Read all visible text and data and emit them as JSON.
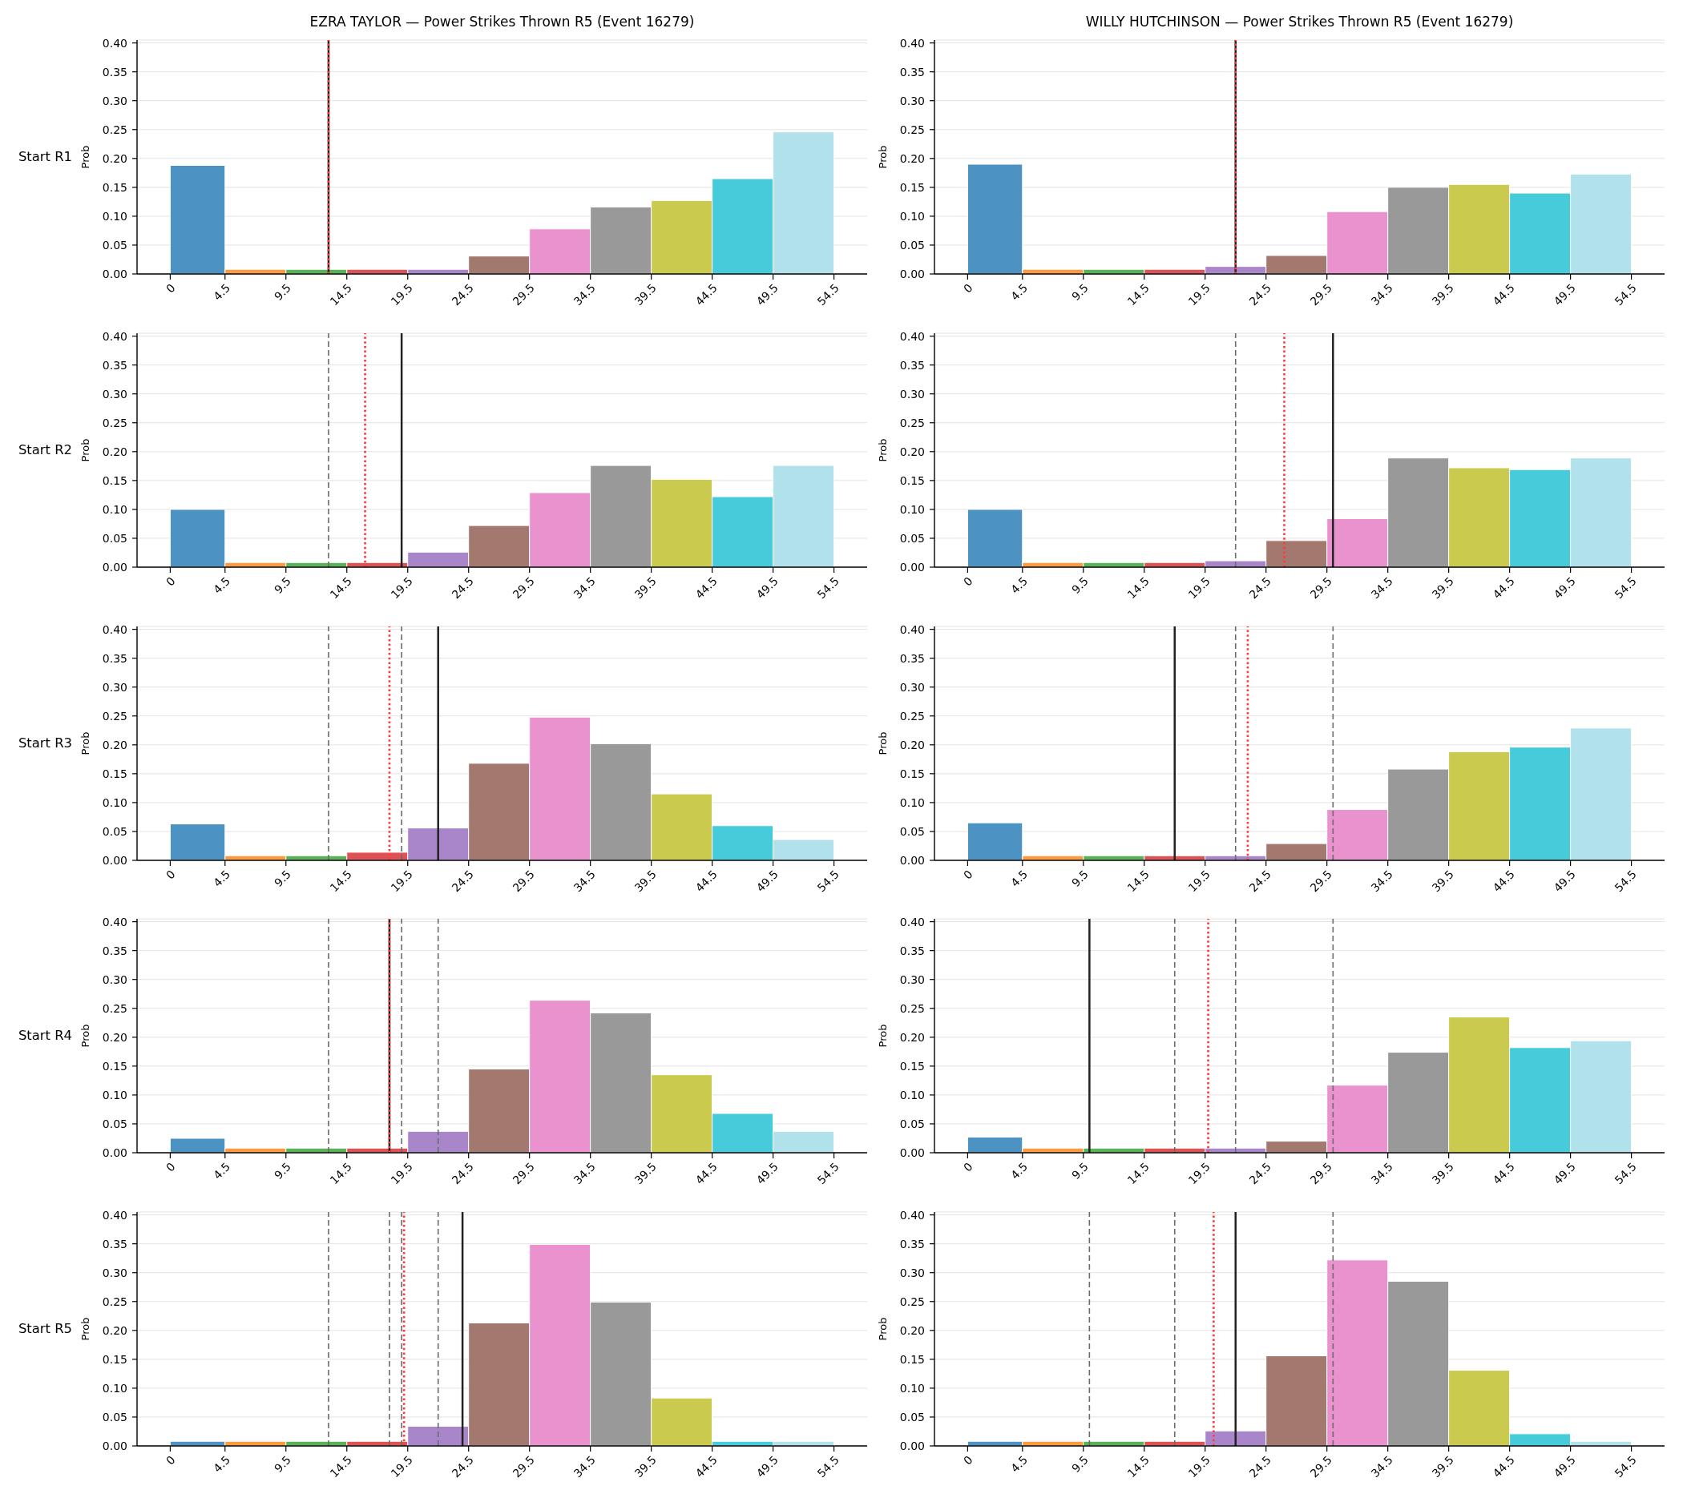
{
  "chart_data": [
    {
      "type": "histogram",
      "title": "EZRA TAYLOR — Power Strikes Thrown R5 (Event 16279)",
      "ylabel": "Prob",
      "annotations": [
        "Start R1"
      ],
      "bins": [
        0,
        4.5,
        9.5,
        14.5,
        19.5,
        24.5,
        29.5,
        34.5,
        39.5,
        44.5,
        49.5,
        54.5
      ],
      "values": [
        0.188,
        0.008,
        0.008,
        0.008,
        0.008,
        0.031,
        0.078,
        0.116,
        0.127,
        0.165,
        0.246
      ],
      "colors": [
        "#4c92c3",
        "#ff993e",
        "#56b356",
        "#de5253",
        "#a985ca",
        "#a3786f",
        "#e992ce",
        "#999999",
        "#c9ca4e",
        "#45cbd9",
        "#b1e1ea"
      ],
      "xlim": [
        -2.725,
        57.225
      ],
      "xticks": [
        0,
        4.5,
        9.5,
        14.5,
        19.5,
        24.5,
        29.5,
        34.5,
        39.5,
        44.5,
        49.5,
        54.5
      ],
      "ylim": [
        0,
        0.405
      ],
      "yticks": [
        {
          "value": 0,
          "label": "0.00"
        },
        {
          "value": 0.05,
          "label": "0.05"
        },
        {
          "value": 0.1,
          "label": "0.10"
        },
        {
          "value": 0.15,
          "label": "0.15"
        },
        {
          "value": 0.2,
          "label": "0.20"
        },
        {
          "value": 0.25,
          "label": "0.25"
        },
        {
          "value": 0.3,
          "label": "0.30"
        },
        {
          "value": 0.35,
          "label": "0.35"
        },
        {
          "value": 0.4,
          "label": "0.40"
        }
      ],
      "grid": "y",
      "ref_lines": [
        {
          "axis": "x",
          "value": 13,
          "color": "#222222",
          "line_style": "solid"
        },
        {
          "axis": "x",
          "value": 13,
          "color": "#ff3c3c",
          "line_style": "dotted"
        }
      ]
    },
    {
      "type": "histogram",
      "title": "WILLY HUTCHINSON — Power Strikes Thrown R5 (Event 16279)",
      "ylabel": "Prob",
      "bins": [
        0,
        4.5,
        9.5,
        14.5,
        19.5,
        24.5,
        29.5,
        34.5,
        39.5,
        44.5,
        49.5,
        54.5
      ],
      "values": [
        0.19,
        0.008,
        0.008,
        0.008,
        0.013,
        0.032,
        0.108,
        0.15,
        0.155,
        0.14,
        0.173
      ],
      "colors": [
        "#4c92c3",
        "#ff993e",
        "#56b356",
        "#de5253",
        "#a985ca",
        "#a3786f",
        "#e992ce",
        "#999999",
        "#c9ca4e",
        "#45cbd9",
        "#b1e1ea"
      ],
      "xlim": [
        -2.725,
        57.225
      ],
      "xticks": [
        0,
        4.5,
        9.5,
        14.5,
        19.5,
        24.5,
        29.5,
        34.5,
        39.5,
        44.5,
        49.5,
        54.5
      ],
      "ylim": [
        0,
        0.405
      ],
      "yticks": [
        {
          "value": 0,
          "label": "0.00"
        },
        {
          "value": 0.05,
          "label": "0.05"
        },
        {
          "value": 0.1,
          "label": "0.10"
        },
        {
          "value": 0.15,
          "label": "0.15"
        },
        {
          "value": 0.2,
          "label": "0.20"
        },
        {
          "value": 0.25,
          "label": "0.25"
        },
        {
          "value": 0.3,
          "label": "0.30"
        },
        {
          "value": 0.35,
          "label": "0.35"
        },
        {
          "value": 0.4,
          "label": "0.40"
        }
      ],
      "grid": "y",
      "ref_lines": [
        {
          "axis": "x",
          "value": 22,
          "color": "#222222",
          "line_style": "solid"
        },
        {
          "axis": "x",
          "value": 22,
          "color": "#ff3c3c",
          "line_style": "dotted"
        }
      ]
    },
    {
      "type": "histogram",
      "ylabel": "Prob",
      "annotations": [
        "Start R2"
      ],
      "bins": [
        0,
        4.5,
        9.5,
        14.5,
        19.5,
        24.5,
        29.5,
        34.5,
        39.5,
        44.5,
        49.5,
        54.5
      ],
      "values": [
        0.1,
        0.008,
        0.008,
        0.008,
        0.026,
        0.072,
        0.129,
        0.176,
        0.152,
        0.122,
        0.176
      ],
      "colors": [
        "#4c92c3",
        "#ff993e",
        "#56b356",
        "#de5253",
        "#a985ca",
        "#a3786f",
        "#e992ce",
        "#999999",
        "#c9ca4e",
        "#45cbd9",
        "#b1e1ea"
      ],
      "xlim": [
        -2.725,
        57.225
      ],
      "xticks": [
        0,
        4.5,
        9.5,
        14.5,
        19.5,
        24.5,
        29.5,
        34.5,
        39.5,
        44.5,
        49.5,
        54.5
      ],
      "ylim": [
        0,
        0.405
      ],
      "yticks": [
        {
          "value": 0,
          "label": "0.00"
        },
        {
          "value": 0.05,
          "label": "0.05"
        },
        {
          "value": 0.1,
          "label": "0.10"
        },
        {
          "value": 0.15,
          "label": "0.15"
        },
        {
          "value": 0.2,
          "label": "0.20"
        },
        {
          "value": 0.25,
          "label": "0.25"
        },
        {
          "value": 0.3,
          "label": "0.30"
        },
        {
          "value": 0.35,
          "label": "0.35"
        },
        {
          "value": 0.4,
          "label": "0.40"
        }
      ],
      "grid": "y",
      "ref_lines": [
        {
          "axis": "x",
          "value": 13,
          "color": "#6b6b6b",
          "line_style": "dashed"
        },
        {
          "axis": "x",
          "value": 19,
          "color": "#222222",
          "line_style": "solid"
        },
        {
          "axis": "x",
          "value": 16,
          "color": "#ff3c3c",
          "line_style": "dotted"
        }
      ]
    },
    {
      "type": "histogram",
      "ylabel": "Prob",
      "bins": [
        0,
        4.5,
        9.5,
        14.5,
        19.5,
        24.5,
        29.5,
        34.5,
        39.5,
        44.5,
        49.5,
        54.5
      ],
      "values": [
        0.1,
        0.008,
        0.008,
        0.008,
        0.011,
        0.046,
        0.084,
        0.189,
        0.172,
        0.169,
        0.189
      ],
      "colors": [
        "#4c92c3",
        "#ff993e",
        "#56b356",
        "#de5253",
        "#a985ca",
        "#a3786f",
        "#e992ce",
        "#999999",
        "#c9ca4e",
        "#45cbd9",
        "#b1e1ea"
      ],
      "xlim": [
        -2.725,
        57.225
      ],
      "xticks": [
        0,
        4.5,
        9.5,
        14.5,
        19.5,
        24.5,
        29.5,
        34.5,
        39.5,
        44.5,
        49.5,
        54.5
      ],
      "ylim": [
        0,
        0.405
      ],
      "yticks": [
        {
          "value": 0,
          "label": "0.00"
        },
        {
          "value": 0.05,
          "label": "0.05"
        },
        {
          "value": 0.1,
          "label": "0.10"
        },
        {
          "value": 0.15,
          "label": "0.15"
        },
        {
          "value": 0.2,
          "label": "0.20"
        },
        {
          "value": 0.25,
          "label": "0.25"
        },
        {
          "value": 0.3,
          "label": "0.30"
        },
        {
          "value": 0.35,
          "label": "0.35"
        },
        {
          "value": 0.4,
          "label": "0.40"
        }
      ],
      "grid": "y",
      "ref_lines": [
        {
          "axis": "x",
          "value": 22,
          "color": "#6b6b6b",
          "line_style": "dashed"
        },
        {
          "axis": "x",
          "value": 30,
          "color": "#222222",
          "line_style": "solid"
        },
        {
          "axis": "x",
          "value": 26,
          "color": "#ff3c3c",
          "line_style": "dotted"
        }
      ]
    },
    {
      "type": "histogram",
      "ylabel": "Prob",
      "annotations": [
        "Start R3"
      ],
      "bins": [
        0,
        4.5,
        9.5,
        14.5,
        19.5,
        24.5,
        29.5,
        34.5,
        39.5,
        44.5,
        49.5,
        54.5
      ],
      "values": [
        0.063,
        0.008,
        0.008,
        0.014,
        0.056,
        0.168,
        0.248,
        0.202,
        0.115,
        0.06,
        0.036
      ],
      "colors": [
        "#4c92c3",
        "#ff993e",
        "#56b356",
        "#de5253",
        "#a985ca",
        "#a3786f",
        "#e992ce",
        "#999999",
        "#c9ca4e",
        "#45cbd9",
        "#b1e1ea"
      ],
      "xlim": [
        -2.725,
        57.225
      ],
      "xticks": [
        0,
        4.5,
        9.5,
        14.5,
        19.5,
        24.5,
        29.5,
        34.5,
        39.5,
        44.5,
        49.5,
        54.5
      ],
      "ylim": [
        0,
        0.405
      ],
      "yticks": [
        {
          "value": 0,
          "label": "0.00"
        },
        {
          "value": 0.05,
          "label": "0.05"
        },
        {
          "value": 0.1,
          "label": "0.10"
        },
        {
          "value": 0.15,
          "label": "0.15"
        },
        {
          "value": 0.2,
          "label": "0.20"
        },
        {
          "value": 0.25,
          "label": "0.25"
        },
        {
          "value": 0.3,
          "label": "0.30"
        },
        {
          "value": 0.35,
          "label": "0.35"
        },
        {
          "value": 0.4,
          "label": "0.40"
        }
      ],
      "grid": "y",
      "ref_lines": [
        {
          "axis": "x",
          "value": 13,
          "color": "#6b6b6b",
          "line_style": "dashed"
        },
        {
          "axis": "x",
          "value": 19,
          "color": "#6b6b6b",
          "line_style": "dashed"
        },
        {
          "axis": "x",
          "value": 22,
          "color": "#222222",
          "line_style": "solid"
        },
        {
          "axis": "x",
          "value": 18,
          "color": "#ff3c3c",
          "line_style": "dotted"
        }
      ]
    },
    {
      "type": "histogram",
      "ylabel": "Prob",
      "bins": [
        0,
        4.5,
        9.5,
        14.5,
        19.5,
        24.5,
        29.5,
        34.5,
        39.5,
        44.5,
        49.5,
        54.5
      ],
      "values": [
        0.065,
        0.008,
        0.008,
        0.008,
        0.008,
        0.029,
        0.088,
        0.158,
        0.188,
        0.196,
        0.229
      ],
      "colors": [
        "#4c92c3",
        "#ff993e",
        "#56b356",
        "#de5253",
        "#a985ca",
        "#a3786f",
        "#e992ce",
        "#999999",
        "#c9ca4e",
        "#45cbd9",
        "#b1e1ea"
      ],
      "xlim": [
        -2.725,
        57.225
      ],
      "xticks": [
        0,
        4.5,
        9.5,
        14.5,
        19.5,
        24.5,
        29.5,
        34.5,
        39.5,
        44.5,
        49.5,
        54.5
      ],
      "ylim": [
        0,
        0.405
      ],
      "yticks": [
        {
          "value": 0,
          "label": "0.00"
        },
        {
          "value": 0.05,
          "label": "0.05"
        },
        {
          "value": 0.1,
          "label": "0.10"
        },
        {
          "value": 0.15,
          "label": "0.15"
        },
        {
          "value": 0.2,
          "label": "0.20"
        },
        {
          "value": 0.25,
          "label": "0.25"
        },
        {
          "value": 0.3,
          "label": "0.30"
        },
        {
          "value": 0.35,
          "label": "0.35"
        },
        {
          "value": 0.4,
          "label": "0.40"
        }
      ],
      "grid": "y",
      "ref_lines": [
        {
          "axis": "x",
          "value": 22,
          "color": "#6b6b6b",
          "line_style": "dashed"
        },
        {
          "axis": "x",
          "value": 30,
          "color": "#6b6b6b",
          "line_style": "dashed"
        },
        {
          "axis": "x",
          "value": 17,
          "color": "#222222",
          "line_style": "solid"
        },
        {
          "axis": "x",
          "value": 23,
          "color": "#ff3c3c",
          "line_style": "dotted"
        }
      ]
    },
    {
      "type": "histogram",
      "ylabel": "Prob",
      "annotations": [
        "Start R4"
      ],
      "bins": [
        0,
        4.5,
        9.5,
        14.5,
        19.5,
        24.5,
        29.5,
        34.5,
        39.5,
        44.5,
        49.5,
        54.5
      ],
      "values": [
        0.025,
        0.008,
        0.008,
        0.008,
        0.037,
        0.145,
        0.264,
        0.242,
        0.135,
        0.068,
        0.037
      ],
      "colors": [
        "#4c92c3",
        "#ff993e",
        "#56b356",
        "#de5253",
        "#a985ca",
        "#a3786f",
        "#e992ce",
        "#999999",
        "#c9ca4e",
        "#45cbd9",
        "#b1e1ea"
      ],
      "xlim": [
        -2.725,
        57.225
      ],
      "xticks": [
        0,
        4.5,
        9.5,
        14.5,
        19.5,
        24.5,
        29.5,
        34.5,
        39.5,
        44.5,
        49.5,
        54.5
      ],
      "ylim": [
        0,
        0.405
      ],
      "yticks": [
        {
          "value": 0,
          "label": "0.00"
        },
        {
          "value": 0.05,
          "label": "0.05"
        },
        {
          "value": 0.1,
          "label": "0.10"
        },
        {
          "value": 0.15,
          "label": "0.15"
        },
        {
          "value": 0.2,
          "label": "0.20"
        },
        {
          "value": 0.25,
          "label": "0.25"
        },
        {
          "value": 0.3,
          "label": "0.30"
        },
        {
          "value": 0.35,
          "label": "0.35"
        },
        {
          "value": 0.4,
          "label": "0.40"
        }
      ],
      "grid": "y",
      "ref_lines": [
        {
          "axis": "x",
          "value": 13,
          "color": "#6b6b6b",
          "line_style": "dashed"
        },
        {
          "axis": "x",
          "value": 19,
          "color": "#6b6b6b",
          "line_style": "dashed"
        },
        {
          "axis": "x",
          "value": 22,
          "color": "#6b6b6b",
          "line_style": "dashed"
        },
        {
          "axis": "x",
          "value": 18,
          "color": "#222222",
          "line_style": "solid"
        },
        {
          "axis": "x",
          "value": 18,
          "color": "#ff3c3c",
          "line_style": "dotted"
        }
      ]
    },
    {
      "type": "histogram",
      "ylabel": "Prob",
      "bins": [
        0,
        4.5,
        9.5,
        14.5,
        19.5,
        24.5,
        29.5,
        34.5,
        39.5,
        44.5,
        49.5,
        54.5
      ],
      "values": [
        0.027,
        0.008,
        0.008,
        0.008,
        0.008,
        0.02,
        0.117,
        0.174,
        0.235,
        0.182,
        0.194
      ],
      "colors": [
        "#4c92c3",
        "#ff993e",
        "#56b356",
        "#de5253",
        "#a985ca",
        "#a3786f",
        "#e992ce",
        "#999999",
        "#c9ca4e",
        "#45cbd9",
        "#b1e1ea"
      ],
      "xlim": [
        -2.725,
        57.225
      ],
      "xticks": [
        0,
        4.5,
        9.5,
        14.5,
        19.5,
        24.5,
        29.5,
        34.5,
        39.5,
        44.5,
        49.5,
        54.5
      ],
      "ylim": [
        0,
        0.405
      ],
      "yticks": [
        {
          "value": 0,
          "label": "0.00"
        },
        {
          "value": 0.05,
          "label": "0.05"
        },
        {
          "value": 0.1,
          "label": "0.10"
        },
        {
          "value": 0.15,
          "label": "0.15"
        },
        {
          "value": 0.2,
          "label": "0.20"
        },
        {
          "value": 0.25,
          "label": "0.25"
        },
        {
          "value": 0.3,
          "label": "0.30"
        },
        {
          "value": 0.35,
          "label": "0.35"
        },
        {
          "value": 0.4,
          "label": "0.40"
        }
      ],
      "grid": "y",
      "ref_lines": [
        {
          "axis": "x",
          "value": 22,
          "color": "#6b6b6b",
          "line_style": "dashed"
        },
        {
          "axis": "x",
          "value": 30,
          "color": "#6b6b6b",
          "line_style": "dashed"
        },
        {
          "axis": "x",
          "value": 17,
          "color": "#6b6b6b",
          "line_style": "dashed"
        },
        {
          "axis": "x",
          "value": 10,
          "color": "#222222",
          "line_style": "solid"
        },
        {
          "axis": "x",
          "value": 19.75,
          "color": "#ff3c3c",
          "line_style": "dotted"
        }
      ]
    },
    {
      "type": "histogram",
      "ylabel": "Prob",
      "annotations": [
        "Start R5"
      ],
      "bins": [
        0,
        4.5,
        9.5,
        14.5,
        19.5,
        24.5,
        29.5,
        34.5,
        39.5,
        44.5,
        49.5,
        54.5
      ],
      "values": [
        0.008,
        0.008,
        0.008,
        0.008,
        0.034,
        0.213,
        0.349,
        0.249,
        0.083,
        0.008,
        0.008
      ],
      "colors": [
        "#4c92c3",
        "#ff993e",
        "#56b356",
        "#de5253",
        "#a985ca",
        "#a3786f",
        "#e992ce",
        "#999999",
        "#c9ca4e",
        "#45cbd9",
        "#b1e1ea"
      ],
      "xlim": [
        -2.725,
        57.225
      ],
      "xticks": [
        0,
        4.5,
        9.5,
        14.5,
        19.5,
        24.5,
        29.5,
        34.5,
        39.5,
        44.5,
        49.5,
        54.5
      ],
      "ylim": [
        0,
        0.405
      ],
      "yticks": [
        {
          "value": 0,
          "label": "0.00"
        },
        {
          "value": 0.05,
          "label": "0.05"
        },
        {
          "value": 0.1,
          "label": "0.10"
        },
        {
          "value": 0.15,
          "label": "0.15"
        },
        {
          "value": 0.2,
          "label": "0.20"
        },
        {
          "value": 0.25,
          "label": "0.25"
        },
        {
          "value": 0.3,
          "label": "0.30"
        },
        {
          "value": 0.35,
          "label": "0.35"
        },
        {
          "value": 0.4,
          "label": "0.40"
        }
      ],
      "grid": "y",
      "ref_lines": [
        {
          "axis": "x",
          "value": 13,
          "color": "#6b6b6b",
          "line_style": "dashed"
        },
        {
          "axis": "x",
          "value": 19,
          "color": "#6b6b6b",
          "line_style": "dashed"
        },
        {
          "axis": "x",
          "value": 22,
          "color": "#6b6b6b",
          "line_style": "dashed"
        },
        {
          "axis": "x",
          "value": 18,
          "color": "#6b6b6b",
          "line_style": "dashed"
        },
        {
          "axis": "x",
          "value": 24,
          "color": "#222222",
          "line_style": "solid"
        },
        {
          "axis": "x",
          "value": 19.2,
          "color": "#ff3c3c",
          "line_style": "dotted"
        }
      ]
    },
    {
      "type": "histogram",
      "ylabel": "Prob",
      "bins": [
        0,
        4.5,
        9.5,
        14.5,
        19.5,
        24.5,
        29.5,
        34.5,
        39.5,
        44.5,
        49.5,
        54.5
      ],
      "values": [
        0.008,
        0.008,
        0.008,
        0.008,
        0.026,
        0.156,
        0.322,
        0.285,
        0.131,
        0.021,
        0.008
      ],
      "colors": [
        "#4c92c3",
        "#ff993e",
        "#56b356",
        "#de5253",
        "#a985ca",
        "#a3786f",
        "#e992ce",
        "#999999",
        "#c9ca4e",
        "#45cbd9",
        "#b1e1ea"
      ],
      "xlim": [
        -2.725,
        57.225
      ],
      "xticks": [
        0,
        4.5,
        9.5,
        14.5,
        19.5,
        24.5,
        29.5,
        34.5,
        39.5,
        44.5,
        49.5,
        54.5
      ],
      "ylim": [
        0,
        0.405
      ],
      "yticks": [
        {
          "value": 0,
          "label": "0.00"
        },
        {
          "value": 0.05,
          "label": "0.05"
        },
        {
          "value": 0.1,
          "label": "0.10"
        },
        {
          "value": 0.15,
          "label": "0.15"
        },
        {
          "value": 0.2,
          "label": "0.20"
        },
        {
          "value": 0.25,
          "label": "0.25"
        },
        {
          "value": 0.3,
          "label": "0.30"
        },
        {
          "value": 0.35,
          "label": "0.35"
        },
        {
          "value": 0.4,
          "label": "0.40"
        }
      ],
      "grid": "y",
      "ref_lines": [
        {
          "axis": "x",
          "value": 30,
          "color": "#6b6b6b",
          "line_style": "dashed"
        },
        {
          "axis": "x",
          "value": 17,
          "color": "#6b6b6b",
          "line_style": "dashed"
        },
        {
          "axis": "x",
          "value": 10,
          "color": "#6b6b6b",
          "line_style": "dashed"
        },
        {
          "axis": "x",
          "value": 22,
          "color": "#222222",
          "line_style": "solid"
        },
        {
          "axis": "x",
          "value": 20.2,
          "color": "#ff3c3c",
          "line_style": "dotted"
        }
      ]
    }
  ]
}
